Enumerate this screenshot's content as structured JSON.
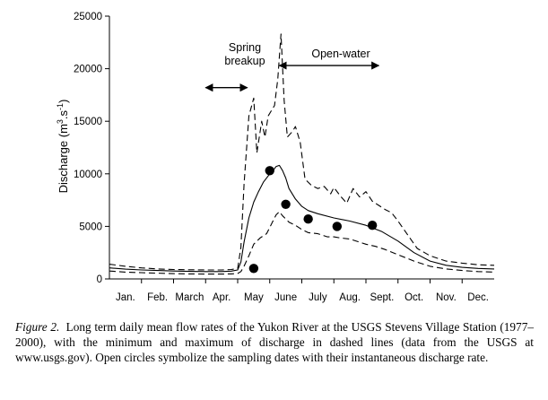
{
  "chart_data": {
    "type": "line",
    "ylabel_main": "Discharge (m",
    "ylabel_sup1": "3",
    "ylabel_mid": ".s",
    "ylabel_sup2": "-1",
    "ylabel_end": ")",
    "ylim": [
      0,
      25000
    ],
    "yticks": [
      "0",
      "5000",
      "10000",
      "15000",
      "20000",
      "25000"
    ],
    "yticks_values": [
      0,
      5000,
      10000,
      15000,
      20000,
      25000
    ],
    "xlim": [
      0,
      12
    ],
    "months": [
      "Jan.",
      "Feb.",
      "March",
      "Apr.",
      "May",
      "June",
      "July",
      "Aug.",
      "Sept.",
      "Oct.",
      "Nov.",
      "Dec."
    ],
    "grid": false,
    "annotations": {
      "spring_line1": "Spring",
      "spring_line2": "breakup",
      "open_water": "Open-water",
      "spring_arrow": [
        3.0,
        4.3
      ],
      "open_arrow": [
        5.3,
        8.4
      ]
    },
    "series": [
      {
        "role": "maximum",
        "style": "dashed",
        "x": [
          0,
          0.5,
          1,
          1.5,
          2,
          2.5,
          3,
          3.5,
          3.8,
          4.0,
          4.1,
          4.2,
          4.35,
          4.5,
          4.6,
          4.75,
          4.85,
          4.95,
          5.05,
          5.15,
          5.25,
          5.35,
          5.45,
          5.55,
          5.7,
          5.8,
          5.95,
          6.1,
          6.3,
          6.5,
          6.7,
          6.9,
          7.0,
          7.2,
          7.4,
          7.6,
          7.8,
          8.0,
          8.2,
          8.4,
          8.6,
          8.8,
          9.0,
          9.3,
          9.6,
          10.0,
          10.5,
          11.0,
          11.5,
          12.0
        ],
        "y": [
          1400,
          1200,
          1050,
          950,
          900,
          870,
          850,
          850,
          900,
          1000,
          3000,
          9000,
          15500,
          17200,
          12000,
          15000,
          13500,
          15500,
          16000,
          16500,
          19000,
          23300,
          17000,
          13500,
          14000,
          14500,
          13000,
          9500,
          8900,
          8600,
          8800,
          8100,
          8700,
          7900,
          7200,
          8600,
          7800,
          8300,
          7400,
          7000,
          6600,
          6300,
          5500,
          4200,
          2900,
          2200,
          1700,
          1500,
          1350,
          1300
        ]
      },
      {
        "role": "mean",
        "style": "solid",
        "x": [
          0,
          0.5,
          1,
          1.5,
          2,
          2.5,
          3,
          3.5,
          3.8,
          4.0,
          4.1,
          4.2,
          4.35,
          4.5,
          4.65,
          4.8,
          5.0,
          5.1,
          5.2,
          5.3,
          5.4,
          5.5,
          5.6,
          5.8,
          6.0,
          6.2,
          6.5,
          7.0,
          7.5,
          8.0,
          8.5,
          9.0,
          9.5,
          10.0,
          10.5,
          11.0,
          11.5,
          12.0
        ],
        "y": [
          1050,
          930,
          850,
          800,
          750,
          720,
          700,
          700,
          740,
          850,
          1600,
          3500,
          5800,
          7300,
          8300,
          9200,
          10000,
          10300,
          10700,
          10800,
          10300,
          9600,
          8600,
          7600,
          6900,
          6500,
          6200,
          5800,
          5500,
          5100,
          4500,
          3600,
          2500,
          1700,
          1300,
          1100,
          1000,
          950
        ]
      },
      {
        "role": "minimum",
        "style": "dashed",
        "x": [
          0,
          0.5,
          1,
          1.5,
          2,
          2.5,
          3,
          3.5,
          3.8,
          4.0,
          4.1,
          4.2,
          4.35,
          4.5,
          4.7,
          4.9,
          5.0,
          5.1,
          5.2,
          5.3,
          5.4,
          5.6,
          5.8,
          6.0,
          6.2,
          6.5,
          6.8,
          7.0,
          7.2,
          7.5,
          7.8,
          8.0,
          8.3,
          8.6,
          9.0,
          9.5,
          10.0,
          10.5,
          11.0,
          11.5,
          12.0
        ],
        "y": [
          750,
          650,
          600,
          550,
          500,
          480,
          460,
          460,
          480,
          520,
          700,
          1200,
          2200,
          3300,
          3900,
          4300,
          4900,
          5500,
          6100,
          6400,
          6000,
          5400,
          5100,
          4700,
          4400,
          4300,
          4000,
          4000,
          3900,
          3800,
          3500,
          3300,
          3100,
          2800,
          2300,
          1700,
          1200,
          950,
          800,
          700,
          650
        ]
      }
    ],
    "sampling_points": {
      "x": [
        4.5,
        5.0,
        5.5,
        6.2,
        7.1,
        8.2
      ],
      "y": [
        1000,
        10300,
        7100,
        5700,
        5000,
        5100
      ]
    }
  },
  "caption": {
    "label": "Figure 2.",
    "text": "Long term daily mean flow rates of the Yukon River at the USGS Stevens Village Station (1977–2000), with the minimum and maximum of discharge in dashed lines (data from the USGS at www.usgs.gov). Open circles symbolize the sampling dates with their instantaneous discharge rate."
  }
}
